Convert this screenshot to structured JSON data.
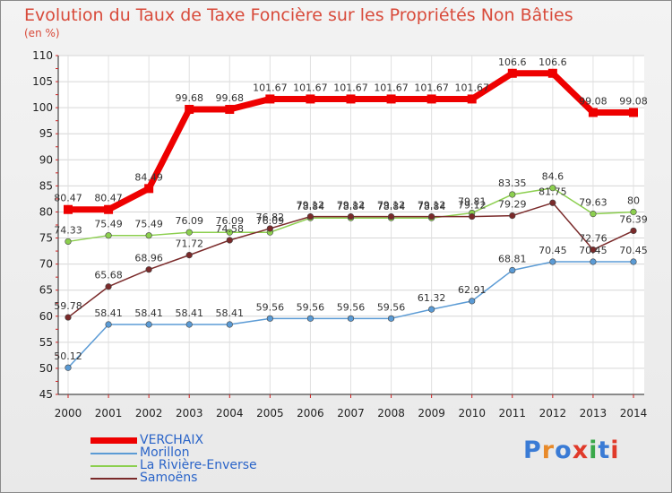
{
  "title": "Evolution du Taux de Taxe Foncière sur les Propriétés Non Bâties",
  "unit": "(en %)",
  "logo": {
    "text": "Proxiti",
    "colors": [
      "#3a7bd5",
      "#e88a2a",
      "#3a7bd5",
      "#e03a2a",
      "#3aa84a",
      "#3a7bd5",
      "#e03a2a"
    ]
  },
  "chart_data": {
    "type": "line",
    "x": [
      "2000",
      "2001",
      "2002",
      "2003",
      "2004",
      "2005",
      "2006",
      "2007",
      "2008",
      "2009",
      "2010",
      "2011",
      "2012",
      "2013",
      "2014"
    ],
    "ylim": [
      45,
      110
    ],
    "yticks": [
      45,
      50,
      55,
      60,
      65,
      70,
      75,
      80,
      85,
      90,
      95,
      100,
      105,
      110
    ],
    "grid": true,
    "legend_position": "bottom-left",
    "series": [
      {
        "name": "VERCHAIX",
        "color": "#ee0000",
        "width": 7,
        "values": [
          80.47,
          80.47,
          84.49,
          99.68,
          99.68,
          101.67,
          101.67,
          101.67,
          101.67,
          101.67,
          101.67,
          106.6,
          106.6,
          99.08,
          99.08
        ],
        "labels": [
          "80.47",
          "80.47",
          "84.49",
          "99.68",
          "99.68",
          "101.67",
          "101.67",
          "101.67",
          "101.67",
          "101.67",
          "101.67",
          "106.6",
          "106.6",
          "99.08",
          "99.08"
        ]
      },
      {
        "name": "Morillon",
        "color": "#5b9bd5",
        "width": 1.5,
        "values": [
          50.12,
          58.41,
          58.41,
          58.41,
          58.41,
          59.56,
          59.56,
          59.56,
          59.56,
          61.32,
          62.91,
          68.81,
          70.45,
          70.45,
          70.45
        ],
        "labels": [
          "50.12",
          "58.41",
          "58.41",
          "58.41",
          "58.41",
          "59.56",
          "59.56",
          "59.56",
          "59.56",
          "61.32",
          "62.91",
          "68.81",
          "70.45",
          "70.45",
          "70.45"
        ]
      },
      {
        "name": "La Rivière-Enverse",
        "color": "#8ccf4f",
        "width": 1.5,
        "values": [
          74.33,
          75.49,
          75.49,
          76.09,
          76.09,
          76.09,
          78.84,
          78.84,
          78.84,
          78.84,
          79.81,
          83.35,
          84.6,
          79.63,
          80
        ],
        "labels": [
          "74.33",
          "75.49",
          "75.49",
          "76.09",
          "76.09",
          "76.09",
          "78.84",
          "78.84",
          "78.84",
          "78.84",
          "79.81",
          "83.35",
          "84.6",
          "79.63",
          "80"
        ]
      },
      {
        "name": "Samoëns",
        "color": "#7a2a2a",
        "width": 1.5,
        "values": [
          59.78,
          65.68,
          68.96,
          71.72,
          74.58,
          76.82,
          79.12,
          79.12,
          79.12,
          79.12,
          79.12,
          79.29,
          81.75,
          72.76,
          76.39
        ],
        "labels": [
          "59.78",
          "65.68",
          "68.96",
          "71.72",
          "74.58",
          "76.82",
          "79.12",
          "79.12",
          "79.12",
          "79.12",
          "79.12",
          "79.29",
          "81.75",
          "72.76",
          "76.39"
        ]
      }
    ]
  }
}
